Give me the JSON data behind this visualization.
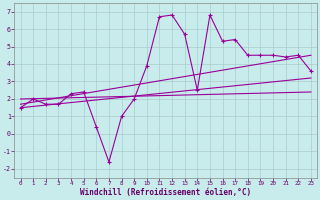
{
  "title": "",
  "xlabel": "Windchill (Refroidissement éolien,°C)",
  "ylabel": "",
  "background_color": "#c8ecec",
  "grid_color": "#aacccc",
  "line_color": "#990099",
  "xlim": [
    -0.5,
    23.5
  ],
  "ylim": [
    -2.5,
    7.5
  ],
  "xticks": [
    0,
    1,
    2,
    3,
    4,
    5,
    6,
    7,
    8,
    9,
    10,
    11,
    12,
    13,
    14,
    15,
    16,
    17,
    18,
    19,
    20,
    21,
    22,
    23
  ],
  "yticks": [
    -2,
    -1,
    0,
    1,
    2,
    3,
    4,
    5,
    6,
    7
  ],
  "main_line_x": [
    0,
    1,
    2,
    3,
    4,
    5,
    6,
    7,
    8,
    9,
    10,
    11,
    12,
    13,
    14,
    15,
    16,
    17,
    18,
    19,
    20,
    21,
    22,
    23
  ],
  "main_line_y": [
    1.5,
    2.0,
    1.7,
    1.7,
    2.3,
    2.4,
    0.4,
    -1.6,
    1.0,
    2.0,
    3.9,
    6.7,
    6.8,
    5.7,
    2.5,
    6.8,
    5.3,
    5.4,
    4.5,
    4.5,
    4.5,
    4.4,
    4.5,
    3.6
  ],
  "reg_line1_x": [
    0,
    23
  ],
  "reg_line1_y": [
    1.7,
    4.5
  ],
  "reg_line2_x": [
    0,
    23
  ],
  "reg_line2_y": [
    2.0,
    2.4
  ],
  "reg_line3_x": [
    0,
    23
  ],
  "reg_line3_y": [
    1.5,
    3.2
  ]
}
